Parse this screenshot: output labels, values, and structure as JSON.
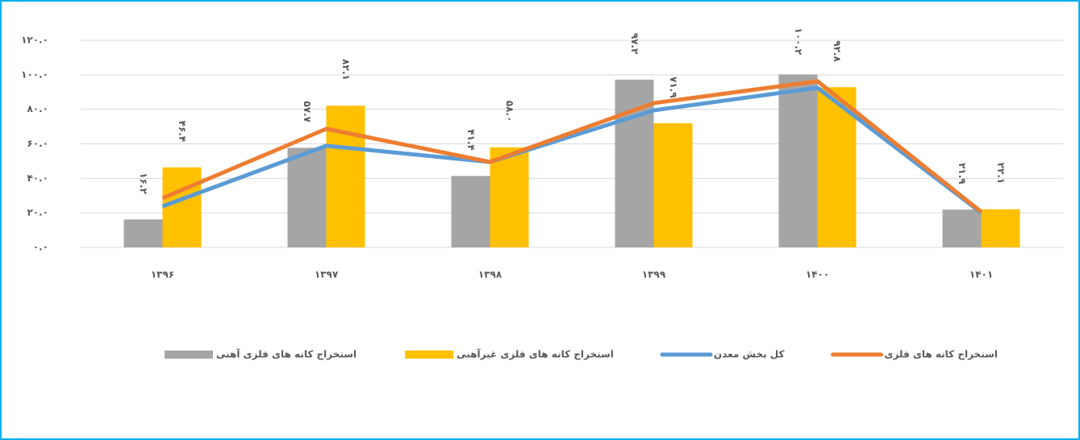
{
  "chart_data": {
    "type": "combo",
    "categories": [
      "۱۳۹۶",
      "۱۳۹۷",
      "۱۳۹۸",
      "۱۳۹۹",
      "۱۴۰۰",
      "۱۴۰۱"
    ],
    "ylim": [
      0,
      120
    ],
    "yticks": [
      {
        "value": 0,
        "label": "۰.۰"
      },
      {
        "value": 20,
        "label": "۲۰.۰"
      },
      {
        "value": 40,
        "label": "۴۰.۰"
      },
      {
        "value": 60,
        "label": "۶۰.۰"
      },
      {
        "value": 80,
        "label": "۸۰.۰"
      },
      {
        "value": 100,
        "label": "۱۰۰.۰"
      },
      {
        "value": 120,
        "label": "۱۲۰.۰"
      }
    ],
    "grid": true,
    "series": [
      {
        "name": "استخراج کانه های فلزی آهنی",
        "type": "bar",
        "color": "#a5a5a5",
        "values": [
          16.2,
          57.7,
          41.4,
          97.2,
          100.2,
          21.9
        ],
        "value_labels": [
          "۱۶.۲",
          "۵۷.۷",
          "۴۱.۴",
          "۹۷.۲",
          "۱۰۰.۲",
          "۲۱.۹"
        ]
      },
      {
        "name": "استخراج کانه های فلزی غیرآهنی",
        "type": "bar",
        "color": "#ffc000",
        "values": [
          46.4,
          82.1,
          58.0,
          71.9,
          92.8,
          22.1
        ],
        "value_labels": [
          "۴۶.۴",
          "۸۲.۱",
          "۵۸.۰",
          "۷۱.۹",
          "۹۲.۸",
          "۲۲.۱"
        ]
      },
      {
        "name": "کل بخش معدن",
        "type": "line",
        "color": "#5b9bd5",
        "values": [
          23.8,
          58.9,
          49.5,
          79.4,
          92.5,
          20.1
        ]
      },
      {
        "name": "استخراج کانه های فلزی",
        "type": "line",
        "color": "#ed7d31",
        "values": [
          28.5,
          68.7,
          49.5,
          83.6,
          96.3,
          20.6
        ]
      }
    ],
    "legend": "bottom"
  }
}
